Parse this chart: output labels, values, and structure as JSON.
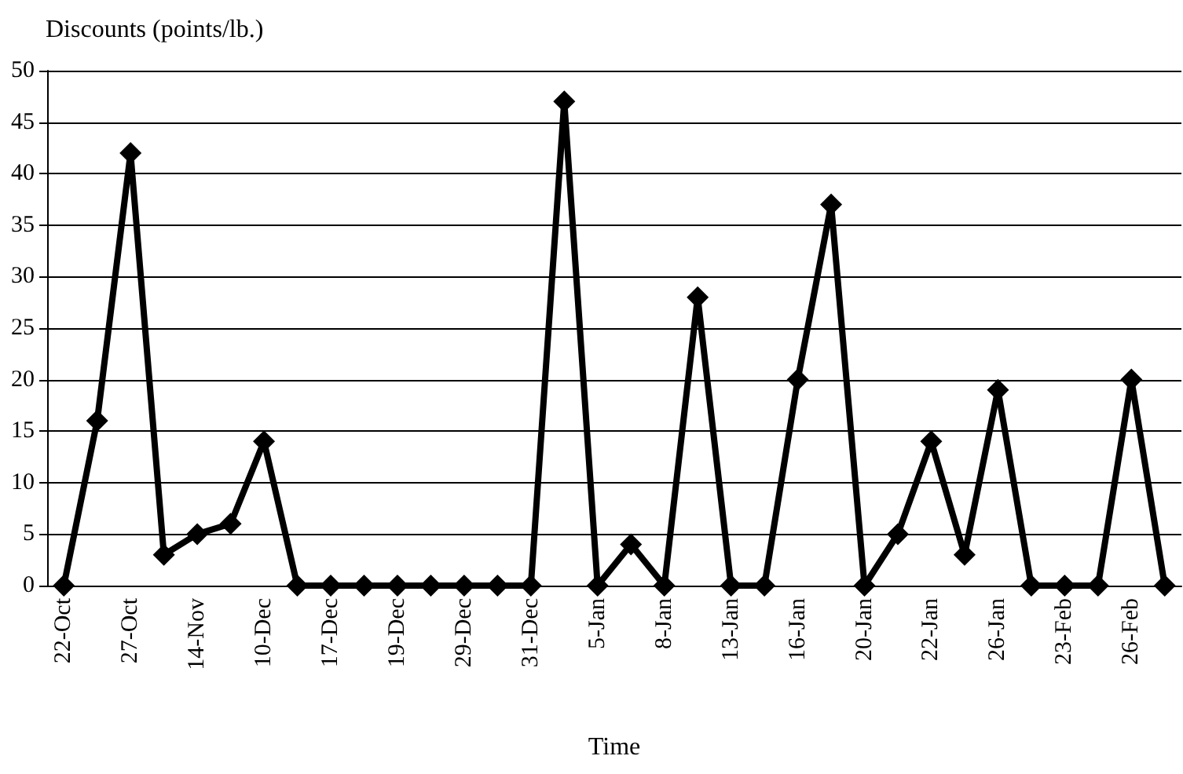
{
  "chart_data": {
    "type": "line",
    "ylabel": "Discounts (points/lb.)",
    "xlabel": "Time",
    "categories": [
      "22-Oct",
      null,
      "27-Oct",
      null,
      "14-Nov",
      null,
      "10-Dec",
      null,
      "17-Dec",
      null,
      "19-Dec",
      null,
      "29-Dec",
      null,
      "31-Dec",
      null,
      "5-Jan",
      null,
      "8-Jan",
      null,
      "13-Jan",
      null,
      "16-Jan",
      null,
      "20-Jan",
      null,
      "22-Jan",
      null,
      "26-Jan",
      null,
      "23-Feb",
      null,
      "26-Feb",
      null
    ],
    "series": [
      {
        "color": "#000000",
        "values": [
          0,
          16,
          42,
          3,
          5,
          6,
          14,
          0,
          0,
          0,
          0,
          0,
          0,
          0,
          0,
          47,
          0,
          4,
          0,
          28,
          0,
          0,
          20,
          37,
          0,
          5,
          14,
          3,
          19,
          0,
          0,
          0,
          20,
          0
        ]
      }
    ],
    "ylim": [
      0,
      50
    ],
    "yticks": [
      0,
      5,
      10,
      15,
      20,
      25,
      30,
      35,
      40,
      45,
      50
    ],
    "grid": "y",
    "marker": "diamond",
    "line_style": "solid"
  }
}
